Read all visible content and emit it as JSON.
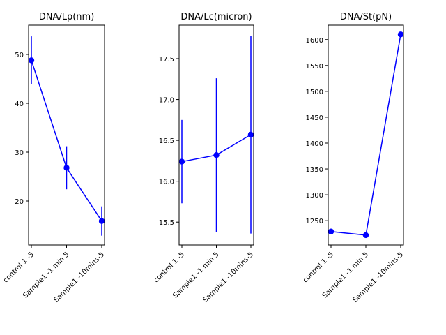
{
  "chart_data": [
    {
      "type": "line",
      "title": "DNA/Lp(nm)",
      "categories": [
        "control 1 -5",
        "Sample1 -1 min 5",
        "Sample1 -10mins-5"
      ],
      "series": [
        {
          "values": [
            48.8,
            26.8,
            15.9
          ],
          "errors": [
            4.9,
            4.4,
            3.0
          ]
        }
      ],
      "ylim": [
        11.0,
        56.0
      ],
      "yticks": [
        20,
        30,
        40,
        50
      ],
      "grid": false,
      "color": "#0000ff"
    },
    {
      "type": "line",
      "title": "DNA/Lc(micron)",
      "categories": [
        "control 1 -5",
        "Sample1 -1 min 5",
        "Sample1 -10mins-5"
      ],
      "series": [
        {
          "values": [
            16.24,
            16.32,
            16.57
          ],
          "errors": [
            0.51,
            0.94,
            1.21
          ]
        }
      ],
      "ylim": [
        15.22,
        17.91
      ],
      "yticks": [
        15.5,
        16.0,
        16.5,
        17.0,
        17.5
      ],
      "ytick_labels": [
        "15.5",
        "16.0",
        "16.5",
        "17.0",
        "17.5"
      ],
      "grid": false,
      "color": "#0000ff"
    },
    {
      "type": "line",
      "title": "DNA/St(pN)",
      "categories": [
        "control 1 -5",
        "Sample1 -1 min 5",
        "Sample1 -10mins-5"
      ],
      "series": [
        {
          "values": [
            1229,
            1222,
            1610
          ],
          "errors": [
            0,
            0,
            0
          ]
        }
      ],
      "ylim": [
        1203,
        1628
      ],
      "yticks": [
        1250,
        1300,
        1350,
        1400,
        1450,
        1500,
        1550,
        1600
      ],
      "grid": false,
      "color": "#0000ff"
    }
  ]
}
